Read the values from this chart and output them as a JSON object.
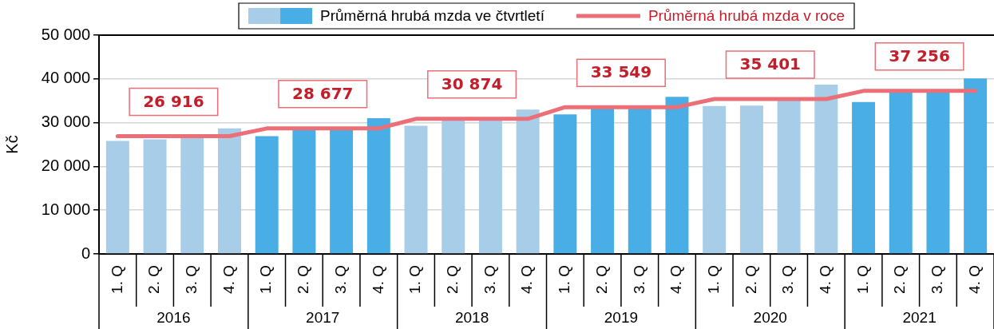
{
  "chart_data": {
    "type": "bar",
    "ylabel": "Kč",
    "categories": [
      "1. Q",
      "2. Q",
      "3. Q",
      "4. Q",
      "1. Q",
      "2. Q",
      "3. Q",
      "4. Q",
      "1. Q",
      "2. Q",
      "3. Q",
      "4. Q",
      "1. Q",
      "2. Q",
      "3. Q",
      "4. Q",
      "1. Q",
      "2. Q",
      "3. Q",
      "4. Q",
      "1. Q",
      "2. Q",
      "3. Q",
      "4. Q"
    ],
    "annotations": [
      "2016",
      "2017",
      "2018",
      "2019",
      "2020",
      "2021"
    ],
    "series": [
      {
        "name": "Průměrná hrubá mzda ve čtvrtletí",
        "colors": [
          "#a7cde9",
          "#a7cde9",
          "#a7cde9",
          "#a7cde9",
          "#49aee6",
          "#49aee6",
          "#49aee6",
          "#49aee6",
          "#a7cde9",
          "#a7cde9",
          "#a7cde9",
          "#a7cde9",
          "#49aee6",
          "#49aee6",
          "#49aee6",
          "#49aee6",
          "#a7cde9",
          "#a7cde9",
          "#a7cde9",
          "#a7cde9",
          "#49aee6",
          "#49aee6",
          "#49aee6",
          "#49aee6"
        ],
        "values": [
          25800,
          26200,
          26900,
          28700,
          26900,
          28400,
          28400,
          31000,
          29300,
          30600,
          30700,
          33000,
          31900,
          33200,
          33200,
          35900,
          33800,
          33900,
          35200,
          38700,
          34700,
          37100,
          37100,
          40100
        ]
      },
      {
        "name": "Průměrná hrubá mzda v roce",
        "type": "line",
        "color": "#ec6e76",
        "values": [
          26916,
          26916,
          26916,
          26916,
          28677,
          28677,
          28677,
          28677,
          30874,
          30874,
          30874,
          30874,
          33549,
          33549,
          33549,
          33549,
          35401,
          35401,
          35401,
          35401,
          37256,
          37256,
          37256,
          37256
        ],
        "value_labels": [
          null,
          "26 916",
          null,
          null,
          null,
          "28 677",
          null,
          null,
          null,
          "30 874",
          null,
          null,
          null,
          "33 549",
          null,
          null,
          null,
          "35 401",
          null,
          null,
          null,
          "37 256",
          null,
          null
        ]
      }
    ],
    "ylim": [
      0,
      50000
    ],
    "yticks": [
      0,
      {
        "value": 10000,
        "label": "10 000"
      },
      {
        "value": 20000,
        "label": "20 000"
      },
      {
        "value": 30000,
        "label": "30 000"
      },
      {
        "value": 40000,
        "label": "40 000"
      },
      {
        "value": 50000,
        "label": "50 000"
      }
    ],
    "grid": "y",
    "legend": "top"
  }
}
